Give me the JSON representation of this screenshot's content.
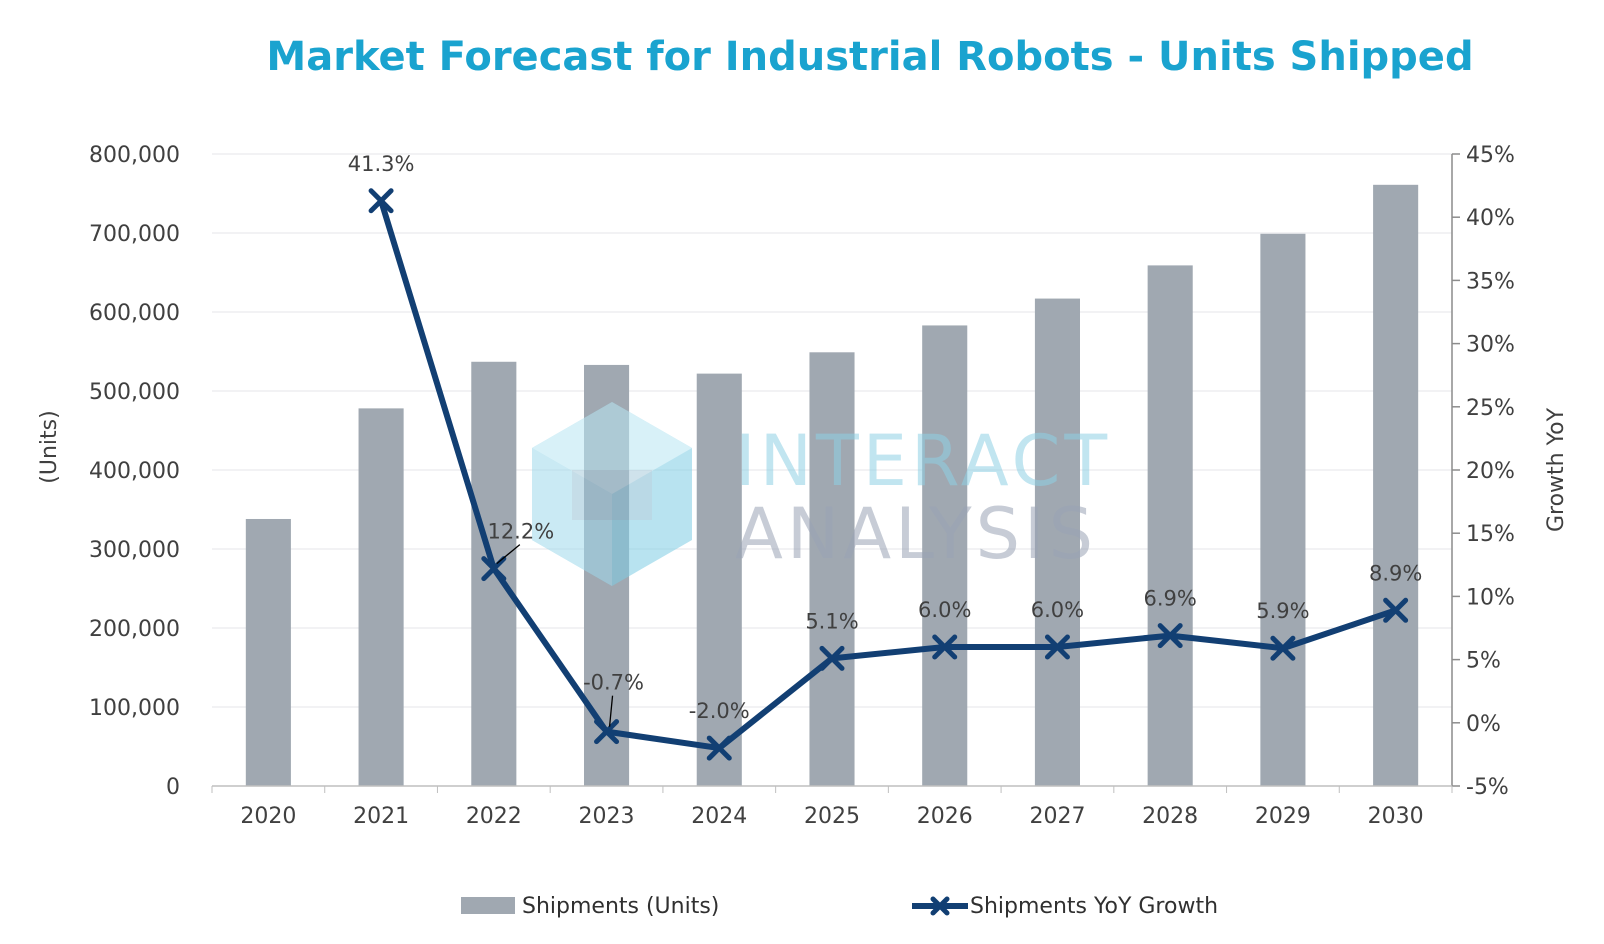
{
  "chart_data": {
    "type": "bar+line",
    "title": "Market Forecast for Industrial Robots - Units Shipped",
    "categories": [
      "2020",
      "2021",
      "2022",
      "2023",
      "2024",
      "2025",
      "2026",
      "2027",
      "2028",
      "2029",
      "2030"
    ],
    "y_left": {
      "label": "(Units)",
      "range": [
        0,
        800000
      ],
      "ticks": [
        "0",
        "100,000",
        "200,000",
        "300,000",
        "400,000",
        "500,000",
        "600,000",
        "700,000",
        "800,000"
      ]
    },
    "y_right": {
      "label": "Growth YoY",
      "range": [
        -5,
        45
      ],
      "ticks": [
        "-5%",
        "0%",
        "5%",
        "10%",
        "15%",
        "20%",
        "25%",
        "30%",
        "35%",
        "40%",
        "45%"
      ]
    },
    "series": [
      {
        "name": "Shipments (Units)",
        "type": "bar",
        "axis": "left",
        "color": "#a0a8b1",
        "values": [
          338000,
          478000,
          537000,
          533000,
          522000,
          549000,
          583000,
          617000,
          659000,
          699000,
          761000
        ]
      },
      {
        "name": "Shipments YoY Growth",
        "type": "line",
        "axis": "right",
        "color": "#123f73",
        "marker": "x",
        "values": [
          null,
          41.3,
          12.2,
          -0.7,
          -2.0,
          5.1,
          6.0,
          6.0,
          6.9,
          5.9,
          8.9
        ],
        "labels": [
          "",
          "41.3%",
          "12.2%",
          "-0.7%",
          "-2.0%",
          "5.1%",
          "6.0%",
          "6.0%",
          "6.9%",
          "5.9%",
          "8.9%"
        ]
      }
    ],
    "grid": true,
    "legend": "bottom",
    "watermark": [
      "INTERACT",
      "ANALYSIS"
    ]
  }
}
